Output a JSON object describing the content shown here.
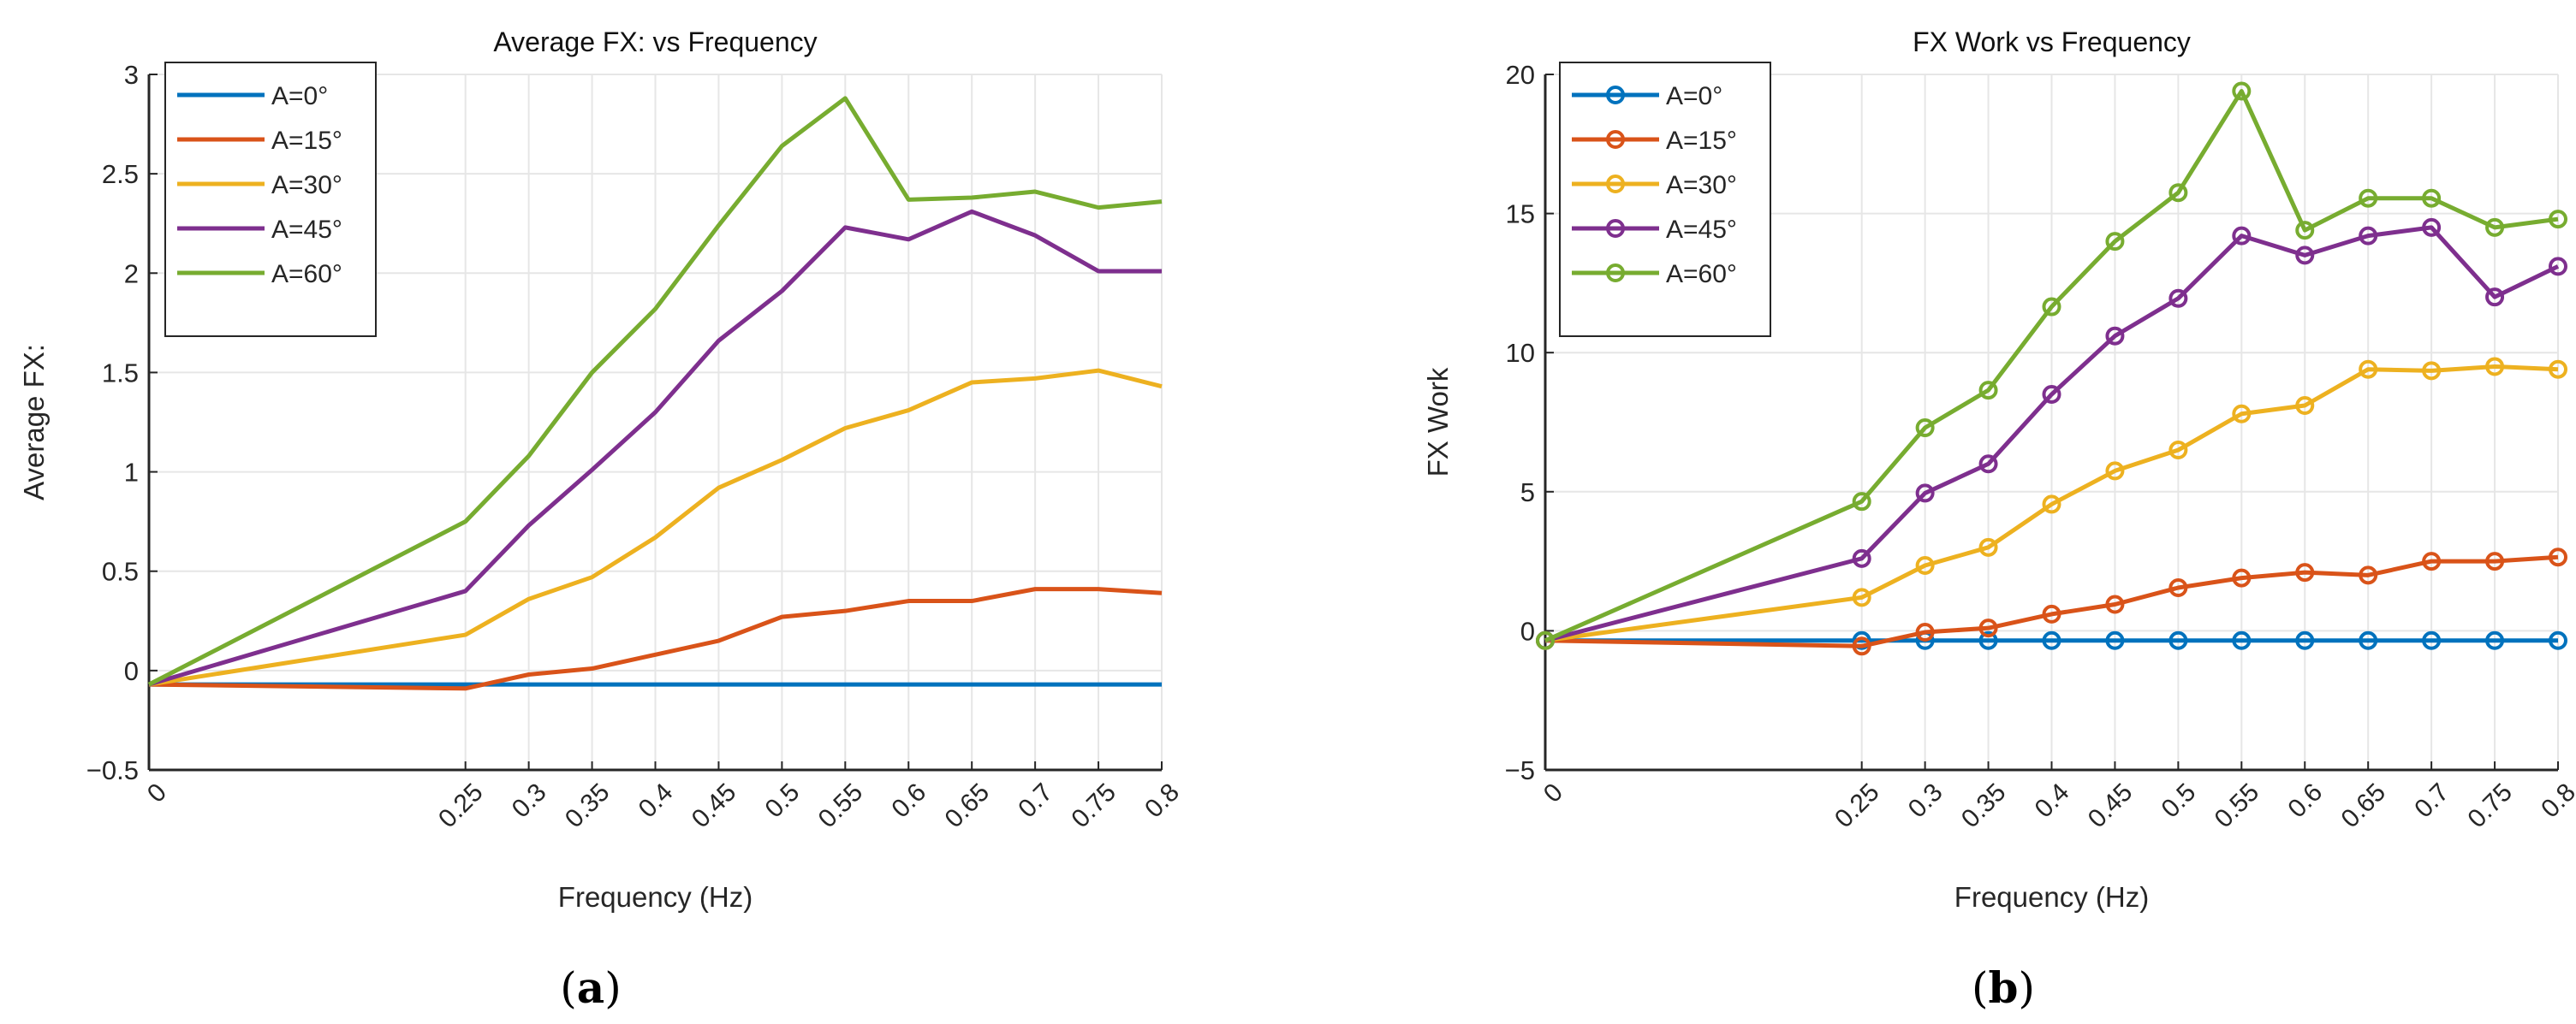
{
  "chart_data": [
    {
      "type": "line",
      "panel_label": "a",
      "title": "Average FX: vs Frequency",
      "xlabel": "Frequency (Hz)",
      "ylabel": "Average FX:",
      "x": [
        0,
        0.25,
        0.3,
        0.35,
        0.4,
        0.45,
        0.5,
        0.55,
        0.6,
        0.65,
        0.7,
        0.75,
        0.8
      ],
      "xticks": [
        "0",
        "0.25",
        "0.3",
        "0.35",
        "0.4",
        "0.45",
        "0.5",
        "0.55",
        "0.6",
        "0.65",
        "0.7",
        "0.75",
        "0.8"
      ],
      "xlim": [
        0,
        0.8
      ],
      "ylim": [
        -0.5,
        3
      ],
      "yticks": [
        -0.5,
        0,
        0.5,
        1,
        1.5,
        2,
        2.5,
        3
      ],
      "ytick_labels": [
        "−0.5",
        "0",
        "0.5",
        "1",
        "1.5",
        "2",
        "2.5",
        "3"
      ],
      "grid": true,
      "markers": false,
      "legend_position": "top-left",
      "series": [
        {
          "name": "A=0°",
          "color": "#0072BD",
          "values": [
            -0.07,
            -0.07,
            -0.07,
            -0.07,
            -0.07,
            -0.07,
            -0.07,
            -0.07,
            -0.07,
            -0.07,
            -0.07,
            -0.07,
            -0.07
          ]
        },
        {
          "name": "A=15°",
          "color": "#D95319",
          "values": [
            -0.07,
            -0.09,
            -0.02,
            0.01,
            0.08,
            0.15,
            0.27,
            0.3,
            0.35,
            0.35,
            0.41,
            0.41,
            0.39
          ]
        },
        {
          "name": "A=30°",
          "color": "#EDB120",
          "values": [
            -0.07,
            0.18,
            0.36,
            0.47,
            0.67,
            0.92,
            1.06,
            1.22,
            1.31,
            1.45,
            1.47,
            1.51,
            1.43
          ]
        },
        {
          "name": "A=45°",
          "color": "#7E2F8E",
          "values": [
            -0.07,
            0.4,
            0.73,
            1.01,
            1.3,
            1.66,
            1.91,
            2.23,
            2.17,
            2.31,
            2.19,
            2.01,
            2.01
          ]
        },
        {
          "name": "A=60°",
          "color": "#77AC30",
          "values": [
            -0.07,
            0.75,
            1.08,
            1.5,
            1.82,
            2.24,
            2.64,
            2.88,
            2.37,
            2.38,
            2.41,
            2.33,
            2.36
          ]
        }
      ]
    },
    {
      "type": "line",
      "panel_label": "b",
      "title": "FX Work vs Frequency",
      "xlabel": "Frequency (Hz)",
      "ylabel": "FX Work",
      "x": [
        0,
        0.25,
        0.3,
        0.35,
        0.4,
        0.45,
        0.5,
        0.55,
        0.6,
        0.65,
        0.7,
        0.75,
        0.8
      ],
      "xticks": [
        "0",
        "0.25",
        "0.3",
        "0.35",
        "0.4",
        "0.45",
        "0.5",
        "0.55",
        "0.6",
        "0.65",
        "0.7",
        "0.75",
        "0.8"
      ],
      "xlim": [
        0,
        0.8
      ],
      "ylim": [
        -5,
        20
      ],
      "yticks": [
        -5,
        0,
        5,
        10,
        15,
        20
      ],
      "ytick_labels": [
        "−5",
        "0",
        "5",
        "10",
        "15",
        "20"
      ],
      "grid": true,
      "markers": true,
      "legend_position": "top-left",
      "series": [
        {
          "name": "A=0°",
          "color": "#0072BD",
          "values": [
            -0.35,
            -0.35,
            -0.35,
            -0.35,
            -0.35,
            -0.35,
            -0.35,
            -0.35,
            -0.35,
            -0.35,
            -0.35,
            -0.35,
            -0.35
          ]
        },
        {
          "name": "A=15°",
          "color": "#D95319",
          "values": [
            -0.35,
            -0.55,
            -0.05,
            0.1,
            0.6,
            0.95,
            1.55,
            1.9,
            2.1,
            2.0,
            2.5,
            2.5,
            2.65
          ]
        },
        {
          "name": "A=30°",
          "color": "#EDB120",
          "values": [
            -0.35,
            1.2,
            2.35,
            3.0,
            4.55,
            5.75,
            6.5,
            7.8,
            8.1,
            9.4,
            9.35,
            9.5,
            9.4
          ]
        },
        {
          "name": "A=45°",
          "color": "#7E2F8E",
          "values": [
            -0.35,
            2.6,
            4.95,
            6.0,
            8.5,
            10.6,
            11.95,
            14.2,
            13.5,
            14.2,
            14.5,
            12.0,
            13.1
          ]
        },
        {
          "name": "A=60°",
          "color": "#77AC30",
          "values": [
            -0.35,
            4.65,
            7.3,
            8.65,
            11.65,
            14.0,
            15.75,
            19.4,
            14.4,
            15.55,
            15.55,
            14.5,
            14.8
          ]
        }
      ]
    }
  ]
}
